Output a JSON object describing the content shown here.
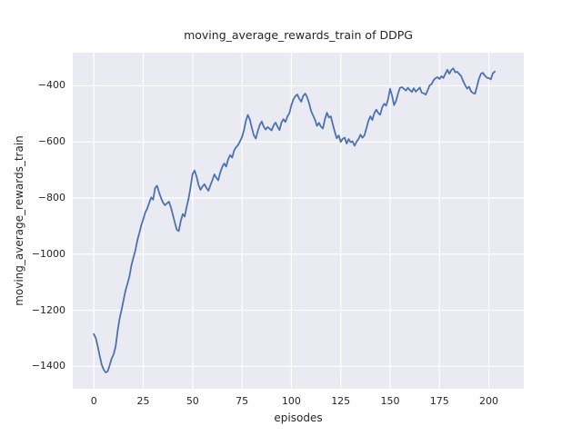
{
  "figure": {
    "title": "moving_average_rewards_train of DDPG",
    "background_color": "#ffffff",
    "text_color": "#262626"
  },
  "chart_data": {
    "type": "line",
    "title": "moving_average_rewards_train of DDPG",
    "xlabel": "episodes",
    "ylabel": "moving_average_rewards_train",
    "style": "seaborn-darkgrid",
    "grid": true,
    "legend_position": "none",
    "plot_bg_color": "#EAEAF2",
    "grid_color": "#FFFFFF",
    "line_color": "#4C72B0",
    "x_ticks": [
      0,
      25,
      50,
      75,
      100,
      125,
      150,
      175,
      200
    ],
    "y_ticks": [
      -400,
      -600,
      -800,
      -1000,
      -1200,
      -1400
    ],
    "xlim": [
      -10.7,
      217.7
    ],
    "ylim": [
      -1480,
      -282
    ],
    "series": [
      {
        "name": "moving_average_rewards_train",
        "x_start": 0,
        "x_step": 1,
        "y": [
          -1285,
          -1300,
          -1330,
          -1365,
          -1395,
          -1412,
          -1422,
          -1418,
          -1396,
          -1372,
          -1357,
          -1330,
          -1275,
          -1230,
          -1200,
          -1165,
          -1130,
          -1105,
          -1080,
          -1040,
          -1012,
          -988,
          -952,
          -925,
          -897,
          -876,
          -852,
          -838,
          -818,
          -798,
          -806,
          -764,
          -756,
          -780,
          -800,
          -816,
          -826,
          -819,
          -813,
          -833,
          -860,
          -888,
          -913,
          -918,
          -882,
          -857,
          -866,
          -831,
          -800,
          -760,
          -714,
          -702,
          -724,
          -753,
          -771,
          -759,
          -751,
          -764,
          -774,
          -754,
          -737,
          -716,
          -728,
          -737,
          -709,
          -689,
          -677,
          -688,
          -662,
          -647,
          -656,
          -631,
          -619,
          -611,
          -598,
          -583,
          -558,
          -523,
          -504,
          -521,
          -551,
          -576,
          -588,
          -561,
          -539,
          -527,
          -546,
          -556,
          -547,
          -553,
          -559,
          -541,
          -531,
          -546,
          -558,
          -531,
          -519,
          -529,
          -509,
          -498,
          -469,
          -449,
          -437,
          -431,
          -446,
          -457,
          -436,
          -428,
          -441,
          -462,
          -490,
          -506,
          -522,
          -543,
          -532,
          -546,
          -552,
          -519,
          -496,
          -513,
          -509,
          -538,
          -565,
          -587,
          -577,
          -600,
          -589,
          -585,
          -606,
          -590,
          -601,
          -598,
          -614,
          -599,
          -590,
          -574,
          -585,
          -577,
          -552,
          -525,
          -509,
          -522,
          -498,
          -485,
          -497,
          -503,
          -477,
          -464,
          -471,
          -447,
          -411,
          -436,
          -469,
          -454,
          -428,
          -407,
          -405,
          -411,
          -417,
          -407,
          -415,
          -422,
          -409,
          -421,
          -414,
          -406,
          -424,
          -427,
          -432,
          -417,
          -399,
          -394,
          -380,
          -373,
          -369,
          -376,
          -366,
          -372,
          -357,
          -343,
          -357,
          -344,
          -338,
          -352,
          -350,
          -358,
          -366,
          -383,
          -398,
          -410,
          -403,
          -420,
          -426,
          -428,
          -403,
          -375,
          -357,
          -354,
          -364,
          -371,
          -373,
          -377,
          -356,
          -349
        ]
      }
    ]
  }
}
